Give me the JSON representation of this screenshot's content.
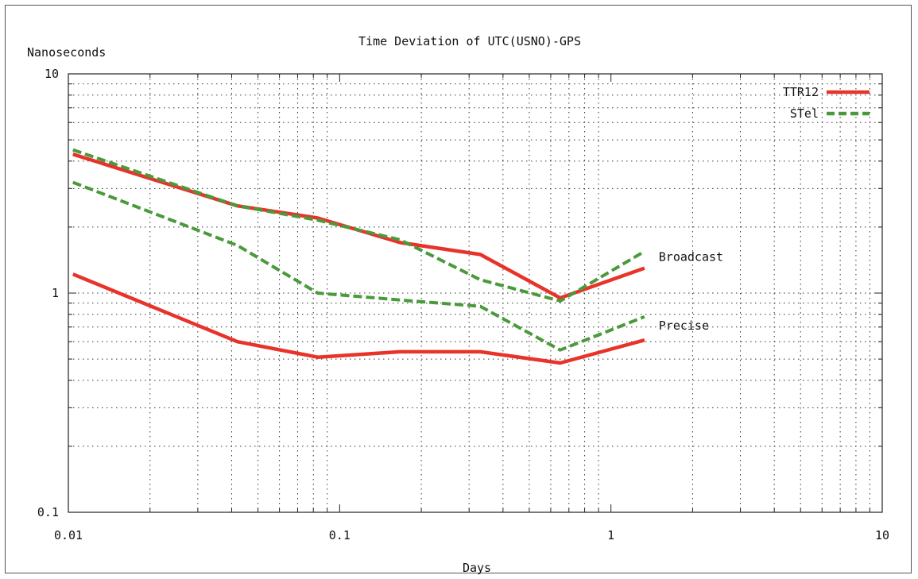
{
  "chart_data": {
    "type": "line",
    "title": "Time Deviation of UTC(USNO)-GPS",
    "xlabel": "Days",
    "ylabel": "Nanoseconds",
    "xscale": "log",
    "yscale": "log",
    "xlim": [
      0.01,
      10
    ],
    "ylim": [
      0.1,
      10
    ],
    "x_ticks": [
      "0.01",
      "0.1",
      "1",
      "10"
    ],
    "y_ticks": [
      "0.1",
      "1",
      "10"
    ],
    "grid": true,
    "legend_position": "top-right",
    "legend": [
      {
        "label": "TTR12",
        "color": "#e8332a",
        "style": "solid"
      },
      {
        "label": "STel",
        "color": "#4a9a3c",
        "style": "dashed"
      }
    ],
    "annotations": [
      {
        "text": "Broadcast",
        "x": 1.5,
        "y": 1.4
      },
      {
        "text": "Precise",
        "x": 1.5,
        "y": 0.68
      }
    ],
    "series": [
      {
        "legend": "TTR12",
        "group": "Broadcast",
        "color": "#e8332a",
        "style": "solid",
        "x": [
          0.0104,
          0.042,
          0.083,
          0.167,
          0.33,
          0.65,
          1.33
        ],
        "y": [
          4.3,
          2.5,
          2.2,
          1.7,
          1.5,
          0.95,
          1.3
        ]
      },
      {
        "legend": "STel",
        "group": "Broadcast",
        "color": "#4a9a3c",
        "style": "dashed",
        "x": [
          0.0104,
          0.042,
          0.083,
          0.167,
          0.33,
          0.65,
          1.33
        ],
        "y": [
          4.5,
          2.5,
          2.15,
          1.75,
          1.15,
          0.92,
          1.55
        ]
      },
      {
        "legend": "STel",
        "group": "Precise",
        "color": "#4a9a3c",
        "style": "dashed",
        "x": [
          0.0104,
          0.042,
          0.083,
          0.167,
          0.33,
          0.65,
          1.33
        ],
        "y": [
          3.2,
          1.65,
          1.0,
          0.93,
          0.87,
          0.55,
          0.78
        ]
      },
      {
        "legend": "TTR12",
        "group": "Precise",
        "color": "#e8332a",
        "style": "solid",
        "x": [
          0.0104,
          0.042,
          0.083,
          0.167,
          0.33,
          0.65,
          1.33
        ],
        "y": [
          1.22,
          0.6,
          0.51,
          0.54,
          0.54,
          0.48,
          0.61
        ]
      }
    ]
  }
}
